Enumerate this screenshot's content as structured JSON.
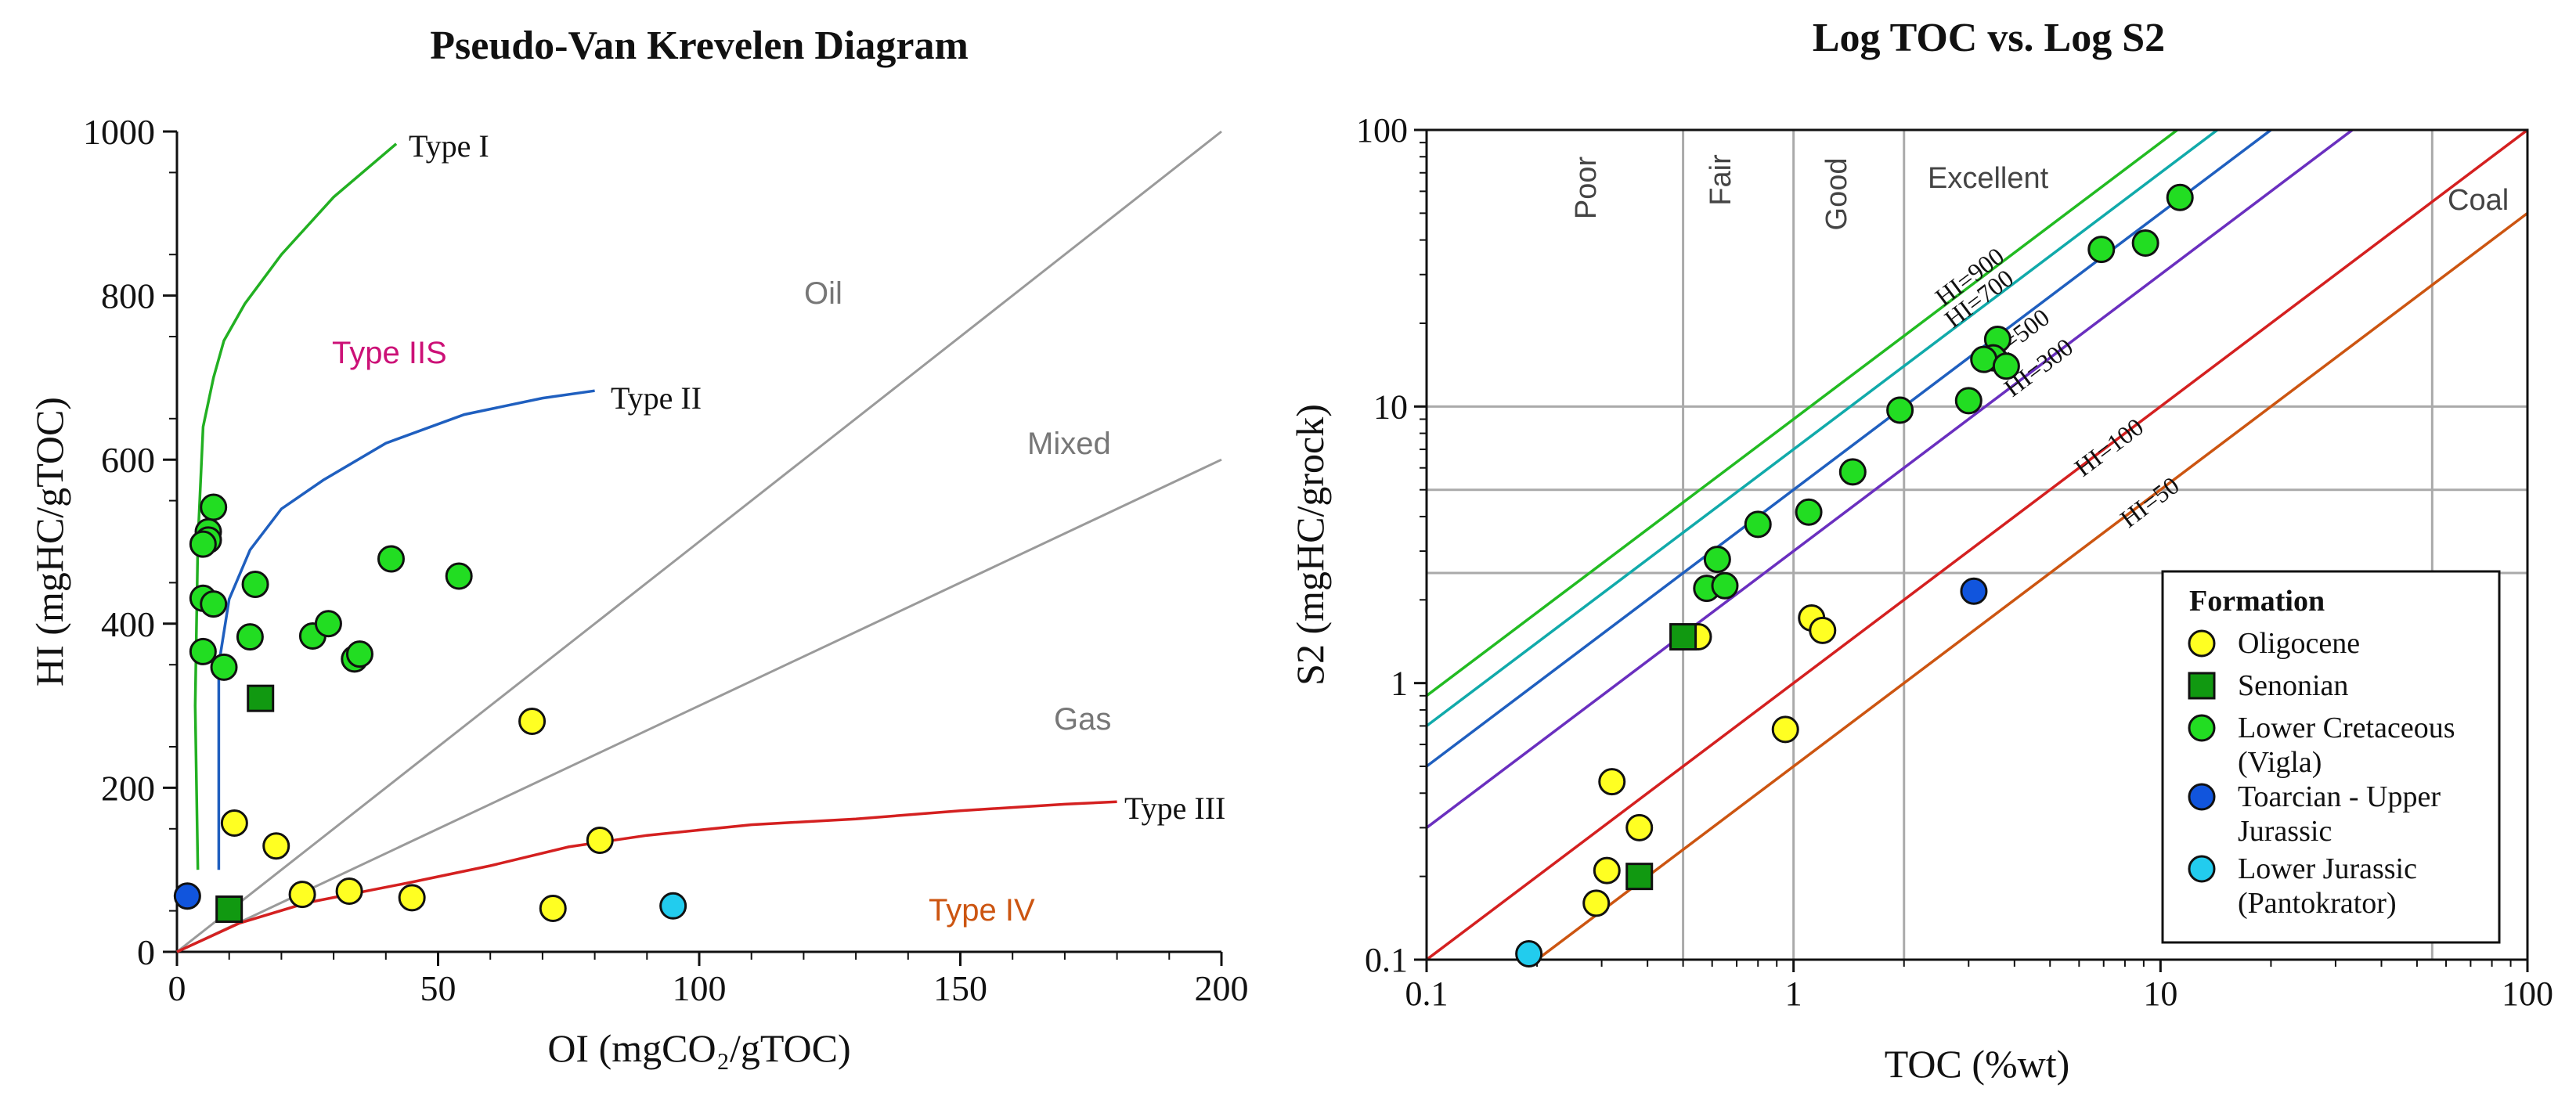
{
  "chart_data": [
    {
      "type": "scatter",
      "title": "Pseudo-Van Krevelen Diagram",
      "xlabel": "OI (mgCO₂/gTOC)",
      "ylabel": "HI (mgHC/gTOC)",
      "xlim": [
        0,
        200
      ],
      "ylim": [
        0,
        1000
      ],
      "xticks": [
        "0",
        "50",
        "100",
        "150",
        "200"
      ],
      "yticks": [
        "0",
        "200",
        "400",
        "600",
        "800",
        "1000"
      ],
      "curves": [
        {
          "name": "Type I",
          "color": "#22b022",
          "points": [
            [
              4,
              100
            ],
            [
              3.5,
              300
            ],
            [
              4,
              500
            ],
            [
              5,
              640
            ],
            [
              7,
              700
            ],
            [
              9,
              745
            ],
            [
              13,
              790
            ],
            [
              20,
              850
            ],
            [
              30,
              920
            ],
            [
              42,
              985
            ]
          ]
        },
        {
          "name": "Type II",
          "color": "#1f5fbf",
          "points": [
            [
              8,
              100
            ],
            [
              8,
              350
            ],
            [
              10,
              430
            ],
            [
              14,
              490
            ],
            [
              20,
              540
            ],
            [
              28,
              575
            ],
            [
              40,
              620
            ],
            [
              55,
              655
            ],
            [
              70,
              675
            ],
            [
              80,
              684
            ]
          ]
        },
        {
          "name": "Type III",
          "color": "#d42020",
          "points": [
            [
              0,
              0
            ],
            [
              12,
              35
            ],
            [
              25,
              60
            ],
            [
              45,
              85
            ],
            [
              60,
              105
            ],
            [
              75,
              128
            ],
            [
              90,
              142
            ],
            [
              110,
              155
            ],
            [
              130,
              162
            ],
            [
              150,
              172
            ],
            [
              170,
              180
            ],
            [
              180,
              183
            ]
          ]
        }
      ],
      "reference_lines": [
        {
          "name": "Oil",
          "points": [
            [
              0,
              0
            ],
            [
              200,
              1000
            ]
          ]
        },
        {
          "name": "Mixed",
          "points": [
            [
              0,
              0
            ],
            [
              200,
              600
            ]
          ]
        }
      ],
      "region_labels": [
        {
          "text": "Type I",
          "kind": "curve"
        },
        {
          "text": "Type II",
          "kind": "curve"
        },
        {
          "text": "Type III",
          "kind": "curve"
        },
        {
          "text": "Oil",
          "kind": "zone"
        },
        {
          "text": "Mixed",
          "kind": "zone"
        },
        {
          "text": "Gas",
          "kind": "zone"
        },
        {
          "text": "Type IIS",
          "kind": "zone-magenta"
        },
        {
          "text": "Type IV",
          "kind": "zone-orange"
        }
      ],
      "series": [
        {
          "name": "Oligocene",
          "marker": "circle",
          "color": "#ffff22",
          "points": [
            [
              11,
              157
            ],
            [
              19,
              129
            ],
            [
              24,
              70
            ],
            [
              33,
              74
            ],
            [
              45,
              66
            ],
            [
              68,
              281
            ],
            [
              72,
              53
            ],
            [
              81,
              136
            ]
          ]
        },
        {
          "name": "Senonian",
          "marker": "square",
          "color": "#119911",
          "points": [
            [
              16,
              309
            ],
            [
              10,
              52
            ]
          ]
        },
        {
          "name": "Lower Cretaceous (Vigla)",
          "marker": "circle",
          "color": "#22dd22",
          "points": [
            [
              7,
              542
            ],
            [
              6,
              512
            ],
            [
              6,
              502
            ],
            [
              5,
              497
            ],
            [
              5,
              431
            ],
            [
              7,
              424
            ],
            [
              5,
              366
            ],
            [
              9,
              347
            ],
            [
              14,
              384
            ],
            [
              15,
              448
            ],
            [
              26,
              385
            ],
            [
              29,
              400
            ],
            [
              34,
              357
            ],
            [
              35,
              363
            ],
            [
              41,
              479
            ],
            [
              54,
              458
            ]
          ]
        },
        {
          "name": "Toarcian - Upper Jurassic",
          "marker": "circle",
          "color": "#1155dd",
          "points": [
            [
              2,
              68
            ]
          ]
        },
        {
          "name": "Lower Jurassic (Pantokrator)",
          "marker": "circle",
          "color": "#22ccee",
          "points": [
            [
              95,
              56
            ]
          ]
        }
      ]
    },
    {
      "type": "scatter",
      "title": "Log TOC vs. Log S2",
      "xlabel": "TOC (%wt)",
      "ylabel": "S2 (mgHC/grock)",
      "xscale": "log",
      "yscale": "log",
      "xlim": [
        0.1,
        100
      ],
      "ylim": [
        0.1,
        100
      ],
      "xticks": [
        "0.1",
        "1",
        "10",
        "100"
      ],
      "yticks": [
        "0.1",
        "1",
        "10",
        "100"
      ],
      "quality_zones": [
        {
          "label": "Poor",
          "toc_max": 0.5
        },
        {
          "label": "Fair",
          "toc_max": 1
        },
        {
          "label": "Good",
          "toc_max": 2
        },
        {
          "label": "Excellent",
          "toc_max": 55
        },
        {
          "label": "Coal",
          "toc_min": 55
        }
      ],
      "vertical_gridlines_toc": [
        0.5,
        1,
        2,
        55
      ],
      "horizontal_gridlines_s2": [
        2.5,
        5,
        10
      ],
      "hi_lines": [
        {
          "label": "HI=900",
          "hi": 900,
          "color": "#22bb22"
        },
        {
          "label": "HI=700",
          "hi": 700,
          "color": "#11aaaa"
        },
        {
          "label": "HI=500",
          "hi": 500,
          "color": "#1f5fbf"
        },
        {
          "label": "HI=300",
          "hi": 300,
          "color": "#6a2fbf"
        },
        {
          "label": "HI=100",
          "hi": 100,
          "color": "#d42020"
        },
        {
          "label": "HI=50",
          "hi": 50,
          "color": "#cc5511"
        }
      ],
      "series": [
        {
          "name": "Oligocene",
          "marker": "circle",
          "color": "#ffff22",
          "points": [
            [
              0.55,
              1.47
            ],
            [
              1.12,
              1.72
            ],
            [
              1.2,
              1.55
            ],
            [
              0.95,
              0.68
            ],
            [
              0.32,
              0.44
            ],
            [
              0.38,
              0.3
            ],
            [
              0.31,
              0.21
            ],
            [
              0.29,
              0.16
            ]
          ]
        },
        {
          "name": "Senonian",
          "marker": "square",
          "color": "#119911",
          "points": [
            [
              0.5,
              1.47
            ],
            [
              0.38,
              0.2
            ]
          ]
        },
        {
          "name": "Lower Cretaceous (Vigla)",
          "marker": "circle",
          "color": "#22dd22",
          "points": [
            [
              11.3,
              57
            ],
            [
              9.1,
              39
            ],
            [
              6.9,
              37
            ],
            [
              3.6,
              17.5
            ],
            [
              3.5,
              15
            ],
            [
              3.3,
              14.8
            ],
            [
              3.8,
              14
            ],
            [
              3.0,
              10.5
            ],
            [
              1.95,
              9.7
            ],
            [
              1.45,
              5.8
            ],
            [
              1.1,
              4.15
            ],
            [
              0.8,
              3.75
            ],
            [
              0.62,
              2.8
            ],
            [
              0.58,
              2.2
            ],
            [
              0.65,
              2.25
            ]
          ]
        },
        {
          "name": "Toarcian - Upper Jurassic",
          "marker": "circle",
          "color": "#1155dd",
          "points": [
            [
              3.1,
              2.15
            ]
          ]
        },
        {
          "name": "Lower Jurassic (Pantokrator)",
          "marker": "circle",
          "color": "#22ccee",
          "points": [
            [
              0.19,
              0.105
            ]
          ]
        }
      ],
      "legend": {
        "title": "Formation",
        "position": "bottom-right",
        "entries": [
          {
            "lines": [
              "Oligocene"
            ],
            "marker": "circle",
            "color": "#ffff22"
          },
          {
            "lines": [
              "Senonian"
            ],
            "marker": "square",
            "color": "#119911"
          },
          {
            "lines": [
              "Lower Cretaceous",
              "(Vigla)"
            ],
            "marker": "circle",
            "color": "#22dd22"
          },
          {
            "lines": [
              "Toarcian - Upper",
              "Jurassic"
            ],
            "marker": "circle",
            "color": "#1155dd"
          },
          {
            "lines": [
              "Lower Jurassic",
              "(Pantokrator)"
            ],
            "marker": "circle",
            "color": "#22ccee"
          }
        ]
      }
    }
  ]
}
